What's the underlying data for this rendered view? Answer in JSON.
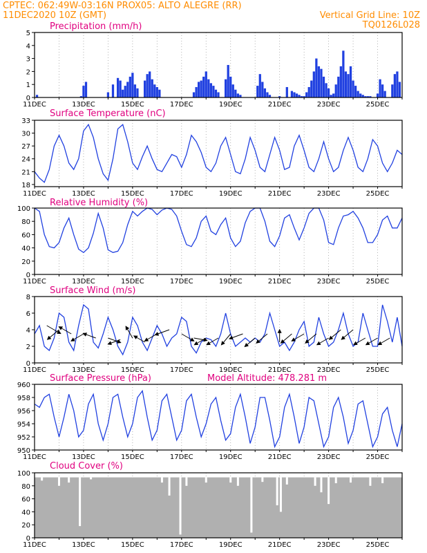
{
  "header": {
    "line1": "CPTEC:   062:49W-03:16N   PROX05: ALTO ALEGRE (RR)",
    "line2_left": "11DEC2020 10Z (GMT)",
    "line2_right": "Vertical Grid Line: 10Z",
    "line3_right": "TQ0126L028"
  },
  "colors": {
    "header": "#ff8c00",
    "title": "#e0007f",
    "series": "#2040e0",
    "cloud": "#b0b0b0",
    "grid": "#a0a0a0"
  },
  "x_axis": {
    "start": "11DEC2020 10Z",
    "days": 15,
    "tick_labels": [
      "11DEC",
      "13DEC",
      "15DEC",
      "17DEC",
      "19DEC",
      "21DEC",
      "23DEC",
      "25DEC"
    ],
    "tick_days": [
      0,
      2,
      4,
      6,
      8,
      10,
      12,
      14
    ]
  },
  "chart_data": [
    {
      "type": "bar",
      "title": "Precipitation (mm/h)",
      "ylim": [
        0,
        5
      ],
      "yticks": [
        "0",
        "1",
        "2",
        "3",
        "4",
        "5"
      ],
      "x_days": [
        0.1,
        1.9,
        2.0,
        2.1,
        3.0,
        3.2,
        3.4,
        3.5,
        3.6,
        3.7,
        3.8,
        3.9,
        4.0,
        4.1,
        4.2,
        4.5,
        4.6,
        4.7,
        4.8,
        4.9,
        5.0,
        5.1,
        6.5,
        6.6,
        6.7,
        6.8,
        6.9,
        7.0,
        7.1,
        7.2,
        7.3,
        7.4,
        7.5,
        7.8,
        7.9,
        8.0,
        8.1,
        8.2,
        8.3,
        8.4,
        9.1,
        9.2,
        9.3,
        9.4,
        9.5,
        9.6,
        10.0,
        10.3,
        10.5,
        10.6,
        10.7,
        10.8,
        10.9,
        11.0,
        11.1,
        11.2,
        11.3,
        11.4,
        11.5,
        11.6,
        11.7,
        11.8,
        11.9,
        12.0,
        12.1,
        12.2,
        12.3,
        12.4,
        12.5,
        12.6,
        12.7,
        12.8,
        12.9,
        13.0,
        13.1,
        13.2,
        13.3,
        13.4,
        13.5,
        13.6,
        13.7,
        14.0,
        14.1,
        14.2,
        14.3,
        14.6,
        14.7,
        14.8,
        14.9
      ],
      "values": [
        0.2,
        0.1,
        0.9,
        1.2,
        0.4,
        1.0,
        1.5,
        1.3,
        0.6,
        0.9,
        1.2,
        1.6,
        1.9,
        1.0,
        0.7,
        1.3,
        1.8,
        2.0,
        1.4,
        1.0,
        0.8,
        0.6,
        0.4,
        0.8,
        1.2,
        1.3,
        1.6,
        2.0,
        1.4,
        1.1,
        0.9,
        0.6,
        0.4,
        1.4,
        2.5,
        1.6,
        1.0,
        0.6,
        0.3,
        0.2,
        0.9,
        1.8,
        1.2,
        0.7,
        0.4,
        0.2,
        0.1,
        0.8,
        0.5,
        0.4,
        0.3,
        0.2,
        0.1,
        0.1,
        0.4,
        0.8,
        1.3,
        2.0,
        3.0,
        2.4,
        2.2,
        1.6,
        1.1,
        0.7,
        0.2,
        0.3,
        1.0,
        1.6,
        2.4,
        3.6,
        2.0,
        1.8,
        2.4,
        1.3,
        0.9,
        0.5,
        0.3,
        0.2,
        0.1,
        0.1,
        0.1,
        0.3,
        1.4,
        1.0,
        0.5,
        1.0,
        1.8,
        2.0,
        1.2
      ]
    },
    {
      "type": "line",
      "title": "Surface Temperature (nC)",
      "ylim": [
        17.5,
        33
      ],
      "yticks": [
        "18",
        "21",
        "24",
        "27",
        "30",
        "33"
      ],
      "x_days": [
        0,
        0.2,
        0.4,
        0.6,
        0.8,
        1.0,
        1.2,
        1.4,
        1.6,
        1.8,
        2.0,
        2.2,
        2.4,
        2.6,
        2.8,
        3.0,
        3.2,
        3.4,
        3.6,
        3.8,
        4.0,
        4.2,
        4.4,
        4.6,
        4.8,
        5.0,
        5.2,
        5.4,
        5.6,
        5.8,
        6.0,
        6.2,
        6.4,
        6.6,
        6.8,
        7.0,
        7.2,
        7.4,
        7.6,
        7.8,
        8.0,
        8.2,
        8.4,
        8.6,
        8.8,
        9.0,
        9.2,
        9.4,
        9.6,
        9.8,
        10.0,
        10.2,
        10.4,
        10.6,
        10.8,
        11.0,
        11.2,
        11.4,
        11.6,
        11.8,
        12.0,
        12.2,
        12.4,
        12.6,
        12.8,
        13.0,
        13.2,
        13.4,
        13.6,
        13.8,
        14.0,
        14.2,
        14.4,
        14.6,
        14.8,
        15.0
      ],
      "values": [
        21,
        19.5,
        18.5,
        21.5,
        27,
        29.5,
        27,
        23,
        21.5,
        24,
        30.5,
        32,
        29,
        24,
        20.5,
        19,
        24,
        31,
        32,
        28,
        23,
        21.5,
        24.5,
        27,
        24,
        21.5,
        21,
        23,
        25,
        24.5,
        22,
        25,
        29.5,
        28,
        25.5,
        22,
        21,
        23,
        27,
        29,
        25,
        21,
        20.5,
        24,
        29,
        26,
        22,
        21,
        25,
        29,
        26,
        21.5,
        22,
        27,
        29.5,
        26,
        22,
        21,
        24,
        28,
        24,
        21,
        22,
        26,
        29,
        26,
        22,
        21,
        24,
        28.5,
        27,
        23,
        21,
        23,
        26,
        25
      ]
    },
    {
      "type": "line",
      "title": "Relative Humidity (%)",
      "ylim": [
        0,
        100
      ],
      "yticks": [
        "0",
        "20",
        "40",
        "60",
        "80",
        "100"
      ],
      "x_days": [
        0,
        0.2,
        0.4,
        0.6,
        0.8,
        1.0,
        1.2,
        1.4,
        1.6,
        1.8,
        2.0,
        2.2,
        2.4,
        2.6,
        2.8,
        3.0,
        3.2,
        3.4,
        3.6,
        3.8,
        4.0,
        4.2,
        4.4,
        4.6,
        4.8,
        5.0,
        5.2,
        5.4,
        5.6,
        5.8,
        6.0,
        6.2,
        6.4,
        6.6,
        6.8,
        7.0,
        7.2,
        7.4,
        7.6,
        7.8,
        8.0,
        8.2,
        8.4,
        8.6,
        8.8,
        9.0,
        9.2,
        9.4,
        9.6,
        9.8,
        10.0,
        10.2,
        10.4,
        10.6,
        10.8,
        11.0,
        11.2,
        11.4,
        11.6,
        11.8,
        12.0,
        12.2,
        12.4,
        12.6,
        12.8,
        13.0,
        13.2,
        13.4,
        13.6,
        13.8,
        14.0,
        14.2,
        14.4,
        14.6,
        14.8,
        15.0
      ],
      "values": [
        100,
        95,
        60,
        42,
        40,
        48,
        70,
        85,
        60,
        38,
        33,
        40,
        62,
        92,
        70,
        37,
        33,
        35,
        48,
        75,
        95,
        88,
        95,
        100,
        98,
        90,
        97,
        100,
        98,
        88,
        65,
        45,
        42,
        55,
        80,
        88,
        65,
        60,
        75,
        85,
        55,
        42,
        50,
        78,
        95,
        100,
        100,
        80,
        50,
        42,
        58,
        85,
        90,
        70,
        52,
        70,
        92,
        100,
        100,
        82,
        48,
        45,
        70,
        88,
        90,
        95,
        85,
        70,
        48,
        48,
        60,
        82,
        88,
        70,
        70,
        85
      ]
    },
    {
      "type": "line",
      "title": "Surface Wind (m/s)",
      "ylim": [
        0,
        8
      ],
      "yticks": [
        "0",
        "2",
        "4",
        "6",
        "8"
      ],
      "x_days": [
        0,
        0.2,
        0.4,
        0.6,
        0.8,
        1.0,
        1.2,
        1.4,
        1.6,
        1.8,
        2.0,
        2.2,
        2.4,
        2.6,
        2.8,
        3.0,
        3.2,
        3.4,
        3.6,
        3.8,
        4.0,
        4.2,
        4.4,
        4.6,
        4.8,
        5.0,
        5.2,
        5.4,
        5.6,
        5.8,
        6.0,
        6.2,
        6.4,
        6.6,
        6.8,
        7.0,
        7.2,
        7.4,
        7.6,
        7.8,
        8.0,
        8.2,
        8.4,
        8.6,
        8.8,
        9.0,
        9.2,
        9.4,
        9.6,
        9.8,
        10.0,
        10.2,
        10.4,
        10.6,
        10.8,
        11.0,
        11.2,
        11.4,
        11.6,
        11.8,
        12.0,
        12.2,
        12.4,
        12.6,
        12.8,
        13.0,
        13.2,
        13.4,
        13.6,
        13.8,
        14.0,
        14.2,
        14.4,
        14.6,
        14.8,
        15.0
      ],
      "values": [
        3.5,
        4.5,
        2.0,
        1.5,
        3.0,
        6.0,
        5.5,
        2.5,
        1.5,
        4.5,
        7.0,
        6.5,
        2.5,
        1.8,
        3.5,
        5.5,
        4.0,
        2.0,
        1.0,
        2.5,
        5.5,
        4.5,
        2.5,
        1.5,
        3.0,
        4.5,
        3.5,
        2.0,
        3.0,
        3.5,
        5.5,
        5.0,
        2.0,
        1.2,
        2.5,
        3.0,
        2.8,
        2.0,
        3.5,
        6.0,
        3.5,
        2.0,
        2.5,
        3.0,
        2.5,
        3.0,
        2.5,
        3.5,
        6.0,
        4.0,
        2.0,
        2.5,
        1.5,
        2.5,
        4.0,
        5.0,
        2.0,
        2.5,
        5.5,
        3.5,
        2.0,
        2.5,
        4.0,
        6.0,
        3.5,
        2.0,
        2.5,
        6.0,
        4.0,
        2.0,
        2.0,
        7.0,
        5.0,
        2.5,
        5.5,
        2.0
      ],
      "barbs": [
        {
          "day": 0.5,
          "speed": 4.5,
          "dir": 120
        },
        {
          "day": 1.0,
          "speed": 4.0,
          "dir": 230
        },
        {
          "day": 1.5,
          "speed": 3.5,
          "dir": 300
        },
        {
          "day": 2.0,
          "speed": 3.5,
          "dir": 240
        },
        {
          "day": 2.5,
          "speed": 3.0,
          "dir": 290
        },
        {
          "day": 3.0,
          "speed": 3.0,
          "dir": 110
        },
        {
          "day": 3.5,
          "speed": 2.8,
          "dir": 250
        },
        {
          "day": 4.0,
          "speed": 3.0,
          "dir": 330
        },
        {
          "day": 4.5,
          "speed": 2.5,
          "dir": 300
        },
        {
          "day": 5.0,
          "speed": 3.5,
          "dir": 240
        },
        {
          "day": 5.5,
          "speed": 4.0,
          "dir": 250
        },
        {
          "day": 6.0,
          "speed": 3.5,
          "dir": 120
        },
        {
          "day": 6.5,
          "speed": 3.0,
          "dir": 100
        },
        {
          "day": 7.0,
          "speed": 3.0,
          "dir": 240
        },
        {
          "day": 7.5,
          "speed": 3.0,
          "dir": 240
        },
        {
          "day": 8.0,
          "speed": 3.5,
          "dir": 220
        },
        {
          "day": 8.5,
          "speed": 3.5,
          "dir": 250
        },
        {
          "day": 9.0,
          "speed": 3.0,
          "dir": 230
        },
        {
          "day": 9.5,
          "speed": 3.5,
          "dir": 230
        },
        {
          "day": 10.0,
          "speed": 2.5,
          "dir": 0
        },
        {
          "day": 10.5,
          "speed": 3.5,
          "dir": 230
        },
        {
          "day": 11.0,
          "speed": 3.5,
          "dir": 240
        },
        {
          "day": 11.5,
          "speed": 3.5,
          "dir": 230
        },
        {
          "day": 12.0,
          "speed": 3.0,
          "dir": 240
        },
        {
          "day": 12.5,
          "speed": 4.0,
          "dir": 230
        },
        {
          "day": 13.0,
          "speed": 4.0,
          "dir": 230
        },
        {
          "day": 13.5,
          "speed": 3.0,
          "dir": 240
        },
        {
          "day": 14.0,
          "speed": 3.0,
          "dir": 240
        },
        {
          "day": 14.5,
          "speed": 3.0,
          "dir": 240
        }
      ]
    },
    {
      "type": "line",
      "title": "Surface Pressure (hPa)",
      "annotation": "Model Altitude: 478.281 m",
      "ylim": [
        950,
        960
      ],
      "yticks": [
        "950",
        "952",
        "954",
        "956",
        "958",
        "960"
      ],
      "x_days": [
        0,
        0.2,
        0.4,
        0.6,
        0.8,
        1.0,
        1.2,
        1.4,
        1.6,
        1.8,
        2.0,
        2.2,
        2.4,
        2.6,
        2.8,
        3.0,
        3.2,
        3.4,
        3.6,
        3.8,
        4.0,
        4.2,
        4.4,
        4.6,
        4.8,
        5.0,
        5.2,
        5.4,
        5.6,
        5.8,
        6.0,
        6.2,
        6.4,
        6.6,
        6.8,
        7.0,
        7.2,
        7.4,
        7.6,
        7.8,
        8.0,
        8.2,
        8.4,
        8.6,
        8.8,
        9.0,
        9.2,
        9.4,
        9.6,
        9.8,
        10.0,
        10.2,
        10.4,
        10.6,
        10.8,
        11.0,
        11.2,
        11.4,
        11.6,
        11.8,
        12.0,
        12.2,
        12.4,
        12.6,
        12.8,
        13.0,
        13.2,
        13.4,
        13.6,
        13.8,
        14.0,
        14.2,
        14.4,
        14.6,
        14.8,
        15.0
      ],
      "values": [
        957,
        956.5,
        958,
        958.5,
        955,
        952,
        955,
        958.5,
        956,
        952,
        953,
        957,
        958.5,
        954,
        951.5,
        954,
        958,
        958.5,
        955,
        952,
        954,
        958,
        959,
        955,
        951.5,
        953,
        957.5,
        958.5,
        955,
        951.5,
        953,
        957.5,
        958.5,
        955,
        952,
        954,
        957,
        958,
        954.5,
        951.5,
        952.5,
        956.5,
        958.5,
        955,
        951,
        953.5,
        958,
        958,
        954.5,
        950.5,
        952,
        956.5,
        958.5,
        955,
        951,
        953.5,
        958,
        957.5,
        954,
        950.5,
        952,
        956.5,
        958,
        955,
        951,
        953,
        957,
        957.5,
        954,
        950.5,
        952,
        955.5,
        956.5,
        953,
        950.5,
        954
      ]
    },
    {
      "type": "bar",
      "title": "Cloud Cover (%)",
      "ylim": [
        0,
        100
      ],
      "yticks": [
        "0",
        "20",
        "40",
        "60",
        "80",
        "100"
      ],
      "baseline": 93,
      "dips": [
        {
          "day": 0.3,
          "value": 88
        },
        {
          "day": 1.0,
          "value": 80
        },
        {
          "day": 1.4,
          "value": 85
        },
        {
          "day": 1.85,
          "value": 18
        },
        {
          "day": 2.3,
          "value": 90
        },
        {
          "day": 5.2,
          "value": 85
        },
        {
          "day": 5.5,
          "value": 65
        },
        {
          "day": 5.95,
          "value": 5
        },
        {
          "day": 6.2,
          "value": 80
        },
        {
          "day": 7.0,
          "value": 85
        },
        {
          "day": 8.0,
          "value": 85
        },
        {
          "day": 8.3,
          "value": 80
        },
        {
          "day": 8.85,
          "value": 8
        },
        {
          "day": 9.3,
          "value": 86
        },
        {
          "day": 9.9,
          "value": 50
        },
        {
          "day": 10.05,
          "value": 40
        },
        {
          "day": 10.3,
          "value": 82
        },
        {
          "day": 11.45,
          "value": 80
        },
        {
          "day": 11.7,
          "value": 70
        },
        {
          "day": 12.0,
          "value": 52
        },
        {
          "day": 12.3,
          "value": 84
        },
        {
          "day": 12.9,
          "value": 85
        },
        {
          "day": 13.7,
          "value": 80
        },
        {
          "day": 14.2,
          "value": 84
        }
      ]
    }
  ]
}
